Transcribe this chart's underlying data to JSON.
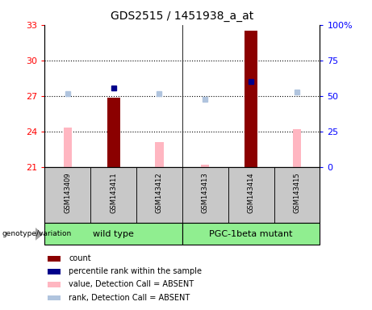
{
  "title": "GDS2515 / 1451938_a_at",
  "samples": [
    "GSM143409",
    "GSM143411",
    "GSM143412",
    "GSM143413",
    "GSM143414",
    "GSM143415"
  ],
  "ylim_left": [
    21,
    33
  ],
  "ylim_right": [
    0,
    100
  ],
  "yticks_left": [
    21,
    24,
    27,
    30,
    33
  ],
  "yticks_right": [
    0,
    25,
    50,
    75,
    100
  ],
  "ytick_labels_right": [
    "0",
    "25",
    "50",
    "75",
    "100%"
  ],
  "bar_values": {
    "GSM143409": null,
    "GSM143411": 26.85,
    "GSM143412": null,
    "GSM143413": null,
    "GSM143414": 32.5,
    "GSM143415": null
  },
  "pink_bar_values": {
    "GSM143409": 24.35,
    "GSM143411": null,
    "GSM143412": 23.1,
    "GSM143413": 21.25,
    "GSM143414": null,
    "GSM143415": 24.2
  },
  "blue_square_values": {
    "GSM143409": null,
    "GSM143411": 55.5,
    "GSM143412": null,
    "GSM143413": null,
    "GSM143414": 60.0,
    "GSM143415": null
  },
  "light_blue_square_values": {
    "GSM143409": 52.0,
    "GSM143411": null,
    "GSM143412": 51.5,
    "GSM143413": 48.0,
    "GSM143414": null,
    "GSM143415": 53.0
  },
  "bar_color": "#8B0000",
  "pink_color": "#FFB6C1",
  "blue_color": "#00008B",
  "light_blue_color": "#B0C4DE",
  "label_area_bg": "#C8C8C8",
  "green_color": "#90EE90",
  "bar_width": 0.28
}
